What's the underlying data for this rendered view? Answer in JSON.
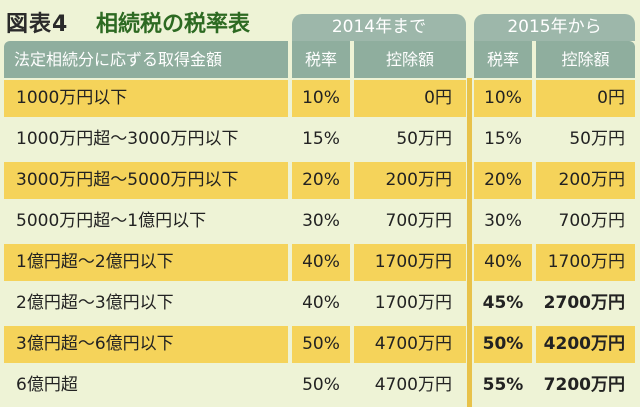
{
  "figure_label": "図表4",
  "title": "相続税の税率表",
  "group_headers": {
    "y2014": "2014年まで",
    "y2015": "2015年から"
  },
  "column_headers": {
    "bracket": "法定相続分に応ずる取得金額",
    "rate_2014": "税率",
    "deduction_2014": "控除額",
    "rate_2015": "税率",
    "deduction_2015": "控除額"
  },
  "rows": [
    {
      "bracket": "1000万円以下",
      "rate_2014": "10%",
      "deduction_2014": "0円",
      "rate_2015": "10%",
      "deduction_2015": "0円",
      "changed": false
    },
    {
      "bracket": "1000万円超〜3000万円以下",
      "rate_2014": "15%",
      "deduction_2014": "50万円",
      "rate_2015": "15%",
      "deduction_2015": "50万円",
      "changed": false
    },
    {
      "bracket": "3000万円超〜5000万円以下",
      "rate_2014": "20%",
      "deduction_2014": "200万円",
      "rate_2015": "20%",
      "deduction_2015": "200万円",
      "changed": false
    },
    {
      "bracket": "5000万円超〜1億円以下",
      "rate_2014": "30%",
      "deduction_2014": "700万円",
      "rate_2015": "30%",
      "deduction_2015": "700万円",
      "changed": false
    },
    {
      "bracket": "1億円超〜2億円以下",
      "rate_2014": "40%",
      "deduction_2014": "1700万円",
      "rate_2015": "40%",
      "deduction_2015": "1700万円",
      "changed": false
    },
    {
      "bracket": "2億円超〜3億円以下",
      "rate_2014": "40%",
      "deduction_2014": "1700万円",
      "rate_2015": "45%",
      "deduction_2015": "2700万円",
      "changed": true
    },
    {
      "bracket": "3億円超〜6億円以下",
      "rate_2014": "50%",
      "deduction_2014": "4700万円",
      "rate_2015": "50%",
      "deduction_2015": "4200万円",
      "changed": true
    },
    {
      "bracket": "6億円超",
      "rate_2014": "50%",
      "deduction_2014": "4700万円",
      "rate_2015": "55%",
      "deduction_2015": "7200万円",
      "changed": true
    }
  ],
  "colors": {
    "background": "#eef3d6",
    "header": "#8fae9e",
    "highlight_row": "#f5d35a",
    "title": "#2d6a22"
  }
}
